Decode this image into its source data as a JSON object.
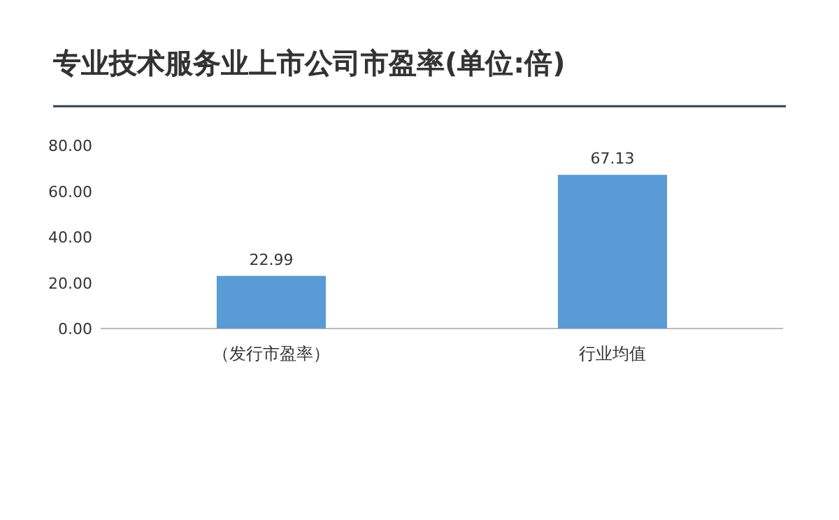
{
  "chart_data": {
    "type": "bar",
    "title": "专业技术服务业上市公司市盈率(单位:倍)",
    "categories": [
      "（发行市盈率）",
      "行业均值"
    ],
    "values": [
      22.99,
      67.13
    ],
    "color": "#5b9bd5",
    "ylim": [
      0,
      80
    ],
    "yticks": [
      {
        "value": 0,
        "label": "0.00"
      },
      {
        "value": 20,
        "label": "20.00"
      },
      {
        "value": 40,
        "label": "40.00"
      },
      {
        "value": 60,
        "label": "60.00"
      },
      {
        "value": 80,
        "label": "80.00"
      }
    ],
    "grid": false,
    "data_labels": true
  }
}
